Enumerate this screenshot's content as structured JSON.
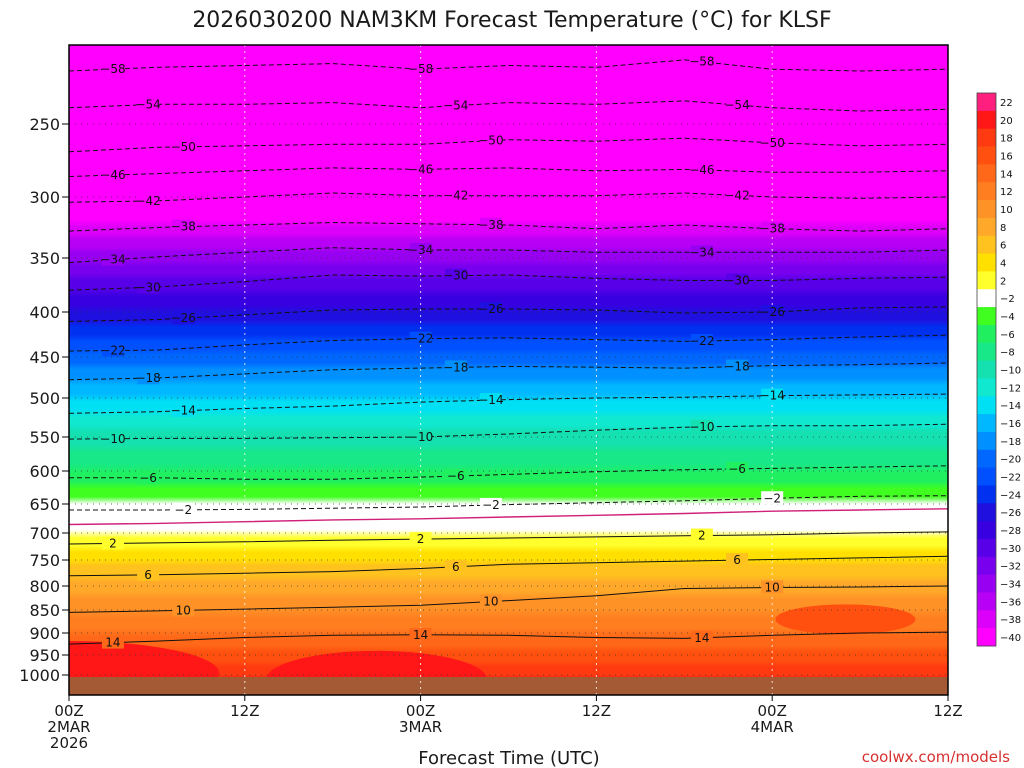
{
  "chart_data": {
    "type": "heatmap",
    "title": "2026030200 NAM3KM Forecast Temperature (°C) for KLSF",
    "xlabel": "Forecast Time (UTC)",
    "ylabel": "",
    "x_ticks": [
      {
        "hour": 0,
        "lines": [
          "00Z",
          "2MAR",
          "2026"
        ]
      },
      {
        "hour": 12,
        "lines": [
          "12Z"
        ]
      },
      {
        "hour": 24,
        "lines": [
          "00Z",
          "3MAR"
        ]
      },
      {
        "hour": 36,
        "lines": [
          "12Z"
        ]
      },
      {
        "hour": 48,
        "lines": [
          "00Z",
          "4MAR"
        ]
      },
      {
        "hour": 60,
        "lines": [
          "12Z"
        ]
      }
    ],
    "xlim": [
      0,
      60
    ],
    "y_ticks": [
      250,
      300,
      350,
      400,
      450,
      500,
      550,
      600,
      650,
      700,
      750,
      800,
      850,
      900,
      950,
      1000
    ],
    "ylim": [
      1030,
      205
    ],
    "colorbar": {
      "levels": [
        22,
        20,
        18,
        16,
        14,
        12,
        10,
        8,
        6,
        4,
        2,
        -2,
        -4,
        -6,
        -8,
        -10,
        -12,
        -14,
        -16,
        -18,
        -20,
        -22,
        -24,
        -26,
        -28,
        -30,
        -32,
        -34,
        -36,
        -38,
        -40
      ],
      "colors": [
        "#ff1f7e",
        "#ff1616",
        "#ff3a10",
        "#ff5010",
        "#ff6818",
        "#ff7e20",
        "#ff9226",
        "#ffa82a",
        "#ffc21e",
        "#ffe000",
        "#ffff2c",
        "#ffffff",
        "#40ff20",
        "#20f060",
        "#18e888",
        "#14e0b0",
        "#10e8d0",
        "#00e0f4",
        "#00b8ff",
        "#0090ff",
        "#0068ff",
        "#0050ff",
        "#0030f0",
        "#2010e0",
        "#3800e0",
        "#5800e8",
        "#7800ee",
        "#9800f2",
        "#b800f6",
        "#dc00fa",
        "#ff00ff"
      ]
    },
    "series": [
      {
        "name": "-58",
        "p": [
          219,
          217,
          216,
          215,
          218,
          216,
          217,
          213,
          218,
          219,
          218
        ]
      },
      {
        "name": "-54",
        "p": [
          240,
          238,
          238,
          237,
          240,
          237,
          238,
          236,
          240,
          242,
          241
        ]
      },
      {
        "name": "-50",
        "p": [
          268,
          265,
          264,
          263,
          263,
          260,
          261,
          259,
          262,
          264,
          263
        ]
      },
      {
        "name": "-46",
        "p": [
          285,
          283,
          281,
          279,
          280,
          279,
          281,
          280,
          282,
          282,
          281
        ]
      },
      {
        "name": "-42",
        "p": [
          304,
          303,
          300,
          297,
          299,
          299,
          299,
          297,
          300,
          301,
          300
        ]
      },
      {
        "name": "-38",
        "p": [
          327,
          324,
          322,
          320,
          321,
          322,
          325,
          322,
          325,
          327,
          325
        ]
      },
      {
        "name": "-34",
        "p": [
          354,
          349,
          345,
          341,
          343,
          343,
          345,
          345,
          345,
          345,
          343
        ]
      },
      {
        "name": "-30",
        "p": [
          379,
          376,
          371,
          365,
          366,
          365,
          368,
          370,
          370,
          368,
          367
        ]
      },
      {
        "name": "-26",
        "p": [
          410,
          408,
          403,
          398,
          397,
          397,
          398,
          401,
          400,
          396,
          395
        ]
      },
      {
        "name": "-22",
        "p": [
          443,
          442,
          436,
          431,
          429,
          428,
          430,
          432,
          430,
          427,
          425
        ]
      },
      {
        "name": "-18",
        "p": [
          477,
          475,
          470,
          465,
          463,
          461,
          462,
          463,
          460,
          459,
          457
        ]
      },
      {
        "name": "-14",
        "p": [
          519,
          517,
          513,
          510,
          505,
          502,
          500,
          499,
          497,
          496,
          495
        ]
      },
      {
        "name": "-10",
        "p": [
          553,
          552,
          552,
          551,
          550,
          546,
          541,
          537,
          535,
          535,
          533
        ]
      },
      {
        "name": "-6",
        "p": [
          610,
          610,
          612,
          612,
          609,
          605,
          601,
          598,
          596,
          594,
          592
        ]
      },
      {
        "name": "-2",
        "p": [
          660,
          660,
          659,
          657,
          655,
          651,
          648,
          645,
          641,
          638,
          637
        ]
      },
      {
        "name": "2",
        "p": [
          720,
          718,
          716,
          713,
          711,
          709,
          707,
          705,
          703,
          700,
          698
        ]
      },
      {
        "name": "6",
        "p": [
          780,
          778,
          775,
          772,
          766,
          758,
          755,
          752,
          749,
          746,
          743
        ]
      },
      {
        "name": "10",
        "p": [
          855,
          852,
          848,
          844,
          840,
          830,
          820,
          805,
          803,
          802,
          800
        ]
      },
      {
        "name": "14",
        "p": [
          925,
          918,
          910,
          905,
          904,
          905,
          910,
          912,
          905,
          900,
          898
        ]
      }
    ],
    "zero_line": {
      "name": "0",
      "p": [
        685,
        683,
        680,
        677,
        675,
        672,
        669,
        666,
        662,
        660,
        658
      ]
    }
  },
  "credit": "coolwx.com/models"
}
